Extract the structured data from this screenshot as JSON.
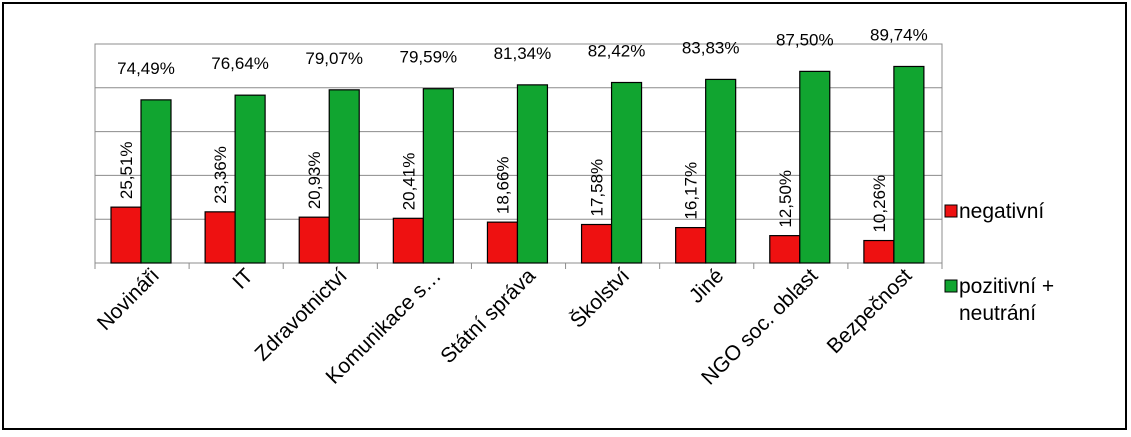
{
  "chart_data": {
    "type": "bar",
    "categories": [
      "Novináři",
      "IT",
      "Zdravotnictví",
      "Komunikace s…",
      "Státní správa",
      "Školství",
      "Jiné",
      "NGO soc. oblast",
      "Bezpečnost"
    ],
    "series": [
      {
        "name": "negativní",
        "color": "#ee1111",
        "values": [
          25.51,
          23.36,
          20.93,
          20.41,
          18.66,
          17.58,
          16.17,
          12.5,
          10.26
        ],
        "labels": [
          "25,51%",
          "23,36%",
          "20,93%",
          "20,41%",
          "18,66%",
          "17,58%",
          "16,17%",
          "12,50%",
          "10,26%"
        ]
      },
      {
        "name": "pozitivní + neutrání",
        "color": "#11a530",
        "values": [
          74.49,
          76.64,
          79.07,
          79.59,
          81.34,
          82.42,
          83.83,
          87.5,
          89.74
        ],
        "labels": [
          "74,49%",
          "76,64%",
          "79,07%",
          "79,59%",
          "81,34%",
          "82,42%",
          "83,83%",
          "87,50%",
          "89,74%"
        ]
      }
    ],
    "ylim": [
      0,
      100
    ],
    "grid": true,
    "legend_position": "right",
    "legend": [
      {
        "label": "negativní",
        "color": "#ee1111"
      },
      {
        "label_lines": [
          "pozitivní +",
          "neutrání"
        ],
        "color": "#11a530"
      }
    ]
  }
}
